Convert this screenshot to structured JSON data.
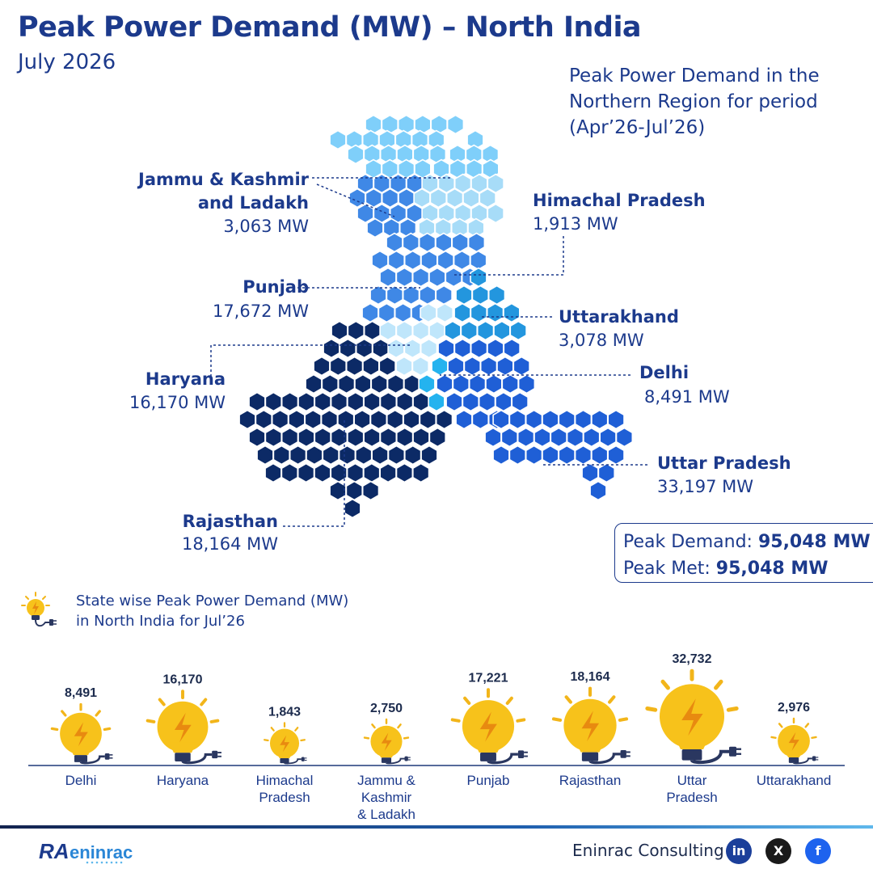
{
  "header": {
    "title": "Peak Power Demand (MW) – North India",
    "subtitle": "July 2026"
  },
  "period_note": {
    "line1": "Peak Power Demand in the",
    "line2": "Northern Region for period",
    "line3": "(Apr’26-Jul’26)"
  },
  "map_labels": [
    {
      "id": "jk",
      "name_line1": "Jammu & Kashmir",
      "name_line2": "and Ladakh",
      "value": "3,063 MW"
    },
    {
      "id": "hp",
      "name_line1": "Himachal Pradesh",
      "value": "1,913 MW"
    },
    {
      "id": "pb",
      "name_line1": "Punjab",
      "value": "17,672 MW"
    },
    {
      "id": "uk",
      "name_line1": "Uttarakhand",
      "value": "3,078 MW"
    },
    {
      "id": "hr",
      "name_line1": "Haryana",
      "value": "16,170 MW"
    },
    {
      "id": "dl",
      "name_line1": "Delhi",
      "value": "8,491 MW"
    },
    {
      "id": "up",
      "name_line1": "Uttar Pradesh",
      "value": "33,197 MW"
    },
    {
      "id": "rj",
      "name_line1": "Rajasthan",
      "value": "18,164 MW"
    }
  ],
  "peak_box": {
    "demand_label": "Peak Demand:",
    "demand_value": "95,048 MW",
    "met_label": "Peak Met:",
    "met_value": "95,048 MW"
  },
  "chart_note": {
    "line1": "State wise Peak Power Demand (MW)",
    "line2": "in North India for Jul’26"
  },
  "colors": {
    "title": "#1c3a8c",
    "jk": "#7fcffa",
    "hp": "#a7dcf8",
    "region_mid": "#3f88e6",
    "uk": "#2396de",
    "punjab_light": "#bfe6fb",
    "delhi": "#24b3ef",
    "up": "#1f5fd6",
    "rajasthan": "#0c2a66",
    "bulb": "#f7c21b"
  },
  "chart_data": {
    "type": "bar",
    "title": "State wise Peak Power Demand (MW) in North India for Jul’26",
    "categories": [
      "Delhi",
      "Haryana",
      "Himachal Pradesh",
      "Jammu & Kashmir & Ladakh",
      "Punjab",
      "Rajasthan",
      "Uttar Pradesh",
      "Uttarakhand"
    ],
    "category_lines": [
      [
        "Delhi"
      ],
      [
        "Haryana"
      ],
      [
        "Himachal",
        "Pradesh"
      ],
      [
        "Jammu &",
        "Kashmir",
        "& Ladakh"
      ],
      [
        "Punjab"
      ],
      [
        "Rajasthan"
      ],
      [
        "Uttar",
        "Pradesh"
      ],
      [
        "Uttarakhand"
      ]
    ],
    "values": [
      8491,
      16170,
      1843,
      2750,
      17221,
      18164,
      32732,
      2976
    ],
    "value_labels": [
      "8,491",
      "16,170",
      "1,843",
      "2,750",
      "17,221",
      "18,164",
      "32,732",
      "2,976"
    ],
    "marker": "lightbulb sized by value",
    "xlabel": "",
    "ylabel": ""
  },
  "footer": {
    "brand_text": "eninrac",
    "brand_prefix": "RA",
    "company": "Eninrac Consulting",
    "social": [
      {
        "name": "linkedin-icon",
        "glyph": "in"
      },
      {
        "name": "x-icon",
        "glyph": "X"
      },
      {
        "name": "facebook-icon",
        "glyph": "f"
      }
    ]
  }
}
